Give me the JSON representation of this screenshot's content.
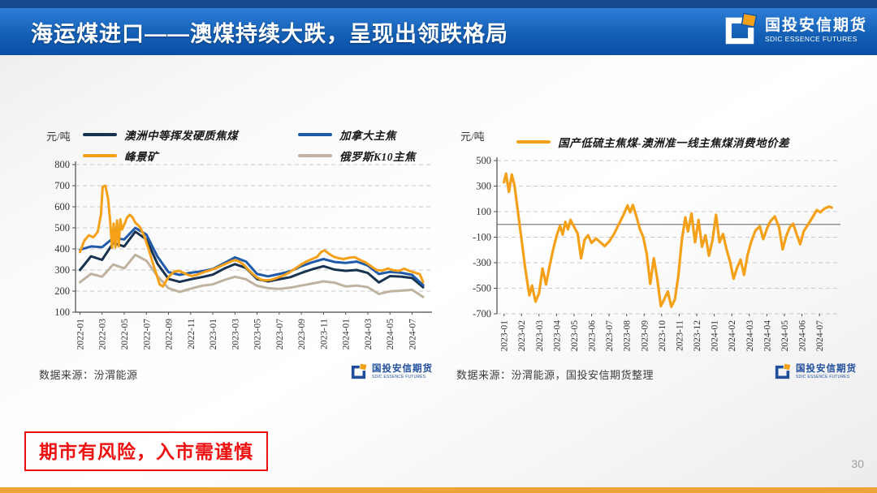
{
  "page": {
    "number": "30"
  },
  "header": {
    "title": "海运煤进口——澳煤持续大跌，呈现出领跌格局"
  },
  "brand": {
    "name_cn": "国投安信期货",
    "name_en": "SDIC ESSENCE FUTURES"
  },
  "risk_notice": "期市有风险，入市需谨慎",
  "colors": {
    "header_strip": "#154a8c",
    "header_top": "#2f7ed8",
    "header_mid": "#1360b5",
    "header_bottom": "#0b4ea6",
    "brand_blue": "#1f4e9c",
    "bottom_bar": "#efa238",
    "risk_red": "#ee1111",
    "navy": "#17334f",
    "blue": "#1f5ba8",
    "orange": "#f4a019",
    "tan": "#bfb2a1",
    "grid": "#c9c9c9",
    "axis": "#4d4d4d",
    "zero": "#808080",
    "tick_text": "#333333",
    "source_text": "#3c3c3c",
    "page_number": "#a0a0a0"
  },
  "chart_data": [
    {
      "type": "line",
      "unit_label": "元/吨",
      "source": "数据来源：汾渭能源",
      "ylim": [
        100,
        800
      ],
      "yticks": [
        800,
        700,
        600,
        500,
        400,
        300,
        200,
        100
      ],
      "bottom_axis": true,
      "zero_line": false,
      "x_domain": [
        -0.4,
        31.8
      ],
      "x_tick_step": 2,
      "x_tick_labels": [
        "2022-01",
        "2022-03",
        "2022-05",
        "2022-07",
        "2022-09",
        "2022-11",
        "2023-01",
        "2023-03",
        "2023-05",
        "2023-07",
        "2023-09",
        "2023-11",
        "2024-01",
        "2024-03",
        "2024-05",
        "2024-07"
      ],
      "margins": {
        "l": 43,
        "r": 10,
        "t": 11,
        "b": 87
      },
      "series": [
        {
          "name": "俄罗斯K10主焦",
          "color_key": "tan",
          "legend_index": 3,
          "width": 3,
          "y": [
            242,
            282,
            268,
            326,
            308,
            372,
            344,
            271,
            214,
            196,
            211,
            225,
            232,
            252,
            268,
            256,
            225,
            214,
            210,
            216,
            226,
            236,
            246,
            240,
            222,
            226,
            219,
            186,
            199,
            202,
            206,
            172
          ]
        },
        {
          "name": "澳洲中等挥发硬质焦煤",
          "color_key": "navy",
          "legend_index": 0,
          "width": 3,
          "y": [
            300,
            365,
            348,
            428,
            412,
            482,
            445,
            330,
            258,
            244,
            256,
            266,
            278,
            306,
            328,
            310,
            257,
            246,
            256,
            266,
            286,
            304,
            318,
            302,
            296,
            300,
            286,
            241,
            271,
            269,
            262,
            218
          ]
        },
        {
          "name": "加拿大主焦",
          "color_key": "blue",
          "legend_index": 1,
          "width": 3,
          "y": [
            396,
            412,
            408,
            452,
            445,
            500,
            468,
            364,
            290,
            277,
            287,
            294,
            305,
            332,
            360,
            340,
            281,
            270,
            281,
            294,
            318,
            337,
            352,
            338,
            334,
            340,
            321,
            281,
            291,
            287,
            277,
            228
          ]
        },
        {
          "name": "峰景矿",
          "color_key": "orange",
          "legend_index": 2,
          "width": 3,
          "points": [
            [
              0,
              385
            ],
            [
              0.4,
              440
            ],
            [
              0.8,
              465
            ],
            [
              1.2,
              455
            ],
            [
              1.6,
              480
            ],
            [
              1.9,
              565
            ],
            [
              2.05,
              695
            ],
            [
              2.3,
              700
            ],
            [
              2.55,
              635
            ],
            [
              2.75,
              520
            ],
            [
              2.9,
              405
            ],
            [
              3.05,
              520
            ],
            [
              3.2,
              408
            ],
            [
              3.35,
              535
            ],
            [
              3.5,
              412
            ],
            [
              3.65,
              540
            ],
            [
              3.8,
              492
            ],
            [
              4.0,
              515
            ],
            [
              4.25,
              548
            ],
            [
              4.5,
              562
            ],
            [
              4.75,
              550
            ],
            [
              5.0,
              525
            ],
            [
              5.4,
              505
            ],
            [
              5.8,
              462
            ],
            [
              6.2,
              400
            ],
            [
              6.6,
              330
            ],
            [
              6.9,
              282
            ],
            [
              7.2,
              232
            ],
            [
              7.5,
              222
            ],
            [
              7.8,
              250
            ],
            [
              8.1,
              272
            ],
            [
              8.5,
              292
            ],
            [
              8.9,
              296
            ],
            [
              9.3,
              288
            ],
            [
              9.7,
              278
            ],
            [
              10.1,
              272
            ],
            [
              10.5,
              276
            ],
            [
              10.9,
              284
            ],
            [
              11.3,
              292
            ],
            [
              11.7,
              298
            ],
            [
              12.1,
              305
            ],
            [
              12.6,
              316
            ],
            [
              13.1,
              328
            ],
            [
              13.6,
              340
            ],
            [
              14.0,
              347
            ],
            [
              14.4,
              340
            ],
            [
              14.8,
              325
            ],
            [
              15.2,
              302
            ],
            [
              15.6,
              282
            ],
            [
              16.0,
              264
            ],
            [
              16.4,
              254
            ],
            [
              16.8,
              251
            ],
            [
              17.2,
              253
            ],
            [
              17.6,
              259
            ],
            [
              18.0,
              267
            ],
            [
              18.5,
              277
            ],
            [
              19.0,
              291
            ],
            [
              19.5,
              309
            ],
            [
              20.0,
              327
            ],
            [
              20.5,
              341
            ],
            [
              21.0,
              353
            ],
            [
              21.4,
              361
            ],
            [
              21.8,
              386
            ],
            [
              22.1,
              393
            ],
            [
              22.5,
              377
            ],
            [
              22.9,
              364
            ],
            [
              23.3,
              357
            ],
            [
              23.8,
              352
            ],
            [
              24.3,
              358
            ],
            [
              24.8,
              361
            ],
            [
              25.3,
              348
            ],
            [
              25.8,
              336
            ],
            [
              26.3,
              318
            ],
            [
              26.8,
              300
            ],
            [
              27.3,
              297
            ],
            [
              27.8,
              307
            ],
            [
              28.3,
              299
            ],
            [
              28.8,
              296
            ],
            [
              29.3,
              306
            ],
            [
              29.8,
              295
            ],
            [
              30.3,
              287
            ],
            [
              30.7,
              280
            ],
            [
              31.0,
              242
            ]
          ]
        }
      ]
    },
    {
      "type": "line",
      "unit_label": "元/吨",
      "source": "数据来源：汾渭能源，国投安信期货整理",
      "ylim": [
        -700,
        500
      ],
      "yticks": [
        500,
        300,
        100,
        -100,
        -300,
        -500,
        -700
      ],
      "bottom_axis": false,
      "zero_line": true,
      "x_domain": [
        -0.4,
        19.2
      ],
      "x_tick_step": 1,
      "x_tick_labels": [
        "2023-01",
        "2023-02",
        "2023-03",
        "2023-04",
        "2023-05",
        "2023-06",
        "2023-07",
        "2023-08",
        "2023-09",
        "2023-10",
        "2023-11",
        "2023-12",
        "2024-01",
        "2024-02",
        "2024-03",
        "2024-04",
        "2024-05",
        "2024-06",
        "2024-07"
      ],
      "margins": {
        "l": 50,
        "r": 10,
        "t": 6,
        "b": 85
      },
      "series": [
        {
          "name": "国产低硫主焦煤-澳洲准一线主焦煤消费地价差",
          "color_key": "orange",
          "legend_index": 0,
          "width": 3.2,
          "points": [
            [
              0,
              330
            ],
            [
              0.12,
              398
            ],
            [
              0.28,
              255
            ],
            [
              0.45,
              390
            ],
            [
              0.6,
              305
            ],
            [
              0.8,
              95
            ],
            [
              1.0,
              -115
            ],
            [
              1.2,
              -330
            ],
            [
              1.45,
              -555
            ],
            [
              1.6,
              -480
            ],
            [
              1.8,
              -605
            ],
            [
              2.0,
              -540
            ],
            [
              2.2,
              -345
            ],
            [
              2.4,
              -470
            ],
            [
              2.6,
              -330
            ],
            [
              2.8,
              -200
            ],
            [
              3.0,
              -90
            ],
            [
              3.2,
              -10
            ],
            [
              3.35,
              -80
            ],
            [
              3.5,
              20
            ],
            [
              3.65,
              -40
            ],
            [
              3.8,
              35
            ],
            [
              4.0,
              -20
            ],
            [
              4.2,
              -70
            ],
            [
              4.4,
              -265
            ],
            [
              4.6,
              -120
            ],
            [
              4.8,
              -85
            ],
            [
              5.0,
              -145
            ],
            [
              5.25,
              -110
            ],
            [
              5.5,
              -140
            ],
            [
              5.75,
              -170
            ],
            [
              6.0,
              -135
            ],
            [
              6.3,
              -70
            ],
            [
              6.6,
              15
            ],
            [
              6.85,
              85
            ],
            [
              7.05,
              148
            ],
            [
              7.2,
              95
            ],
            [
              7.35,
              152
            ],
            [
              7.55,
              65
            ],
            [
              7.75,
              -35
            ],
            [
              7.95,
              -100
            ],
            [
              8.15,
              -235
            ],
            [
              8.35,
              -465
            ],
            [
              8.55,
              -265
            ],
            [
              8.75,
              -430
            ],
            [
              8.95,
              -640
            ],
            [
              9.15,
              -585
            ],
            [
              9.35,
              -525
            ],
            [
              9.55,
              -645
            ],
            [
              9.75,
              -588
            ],
            [
              9.95,
              -400
            ],
            [
              10.15,
              -120
            ],
            [
              10.35,
              55
            ],
            [
              10.5,
              -55
            ],
            [
              10.7,
              85
            ],
            [
              10.9,
              -140
            ],
            [
              11.1,
              35
            ],
            [
              11.3,
              -175
            ],
            [
              11.5,
              -85
            ],
            [
              11.7,
              -245
            ],
            [
              11.9,
              -120
            ],
            [
              12.1,
              75
            ],
            [
              12.3,
              -140
            ],
            [
              12.5,
              -75
            ],
            [
              12.7,
              -195
            ],
            [
              12.9,
              -290
            ],
            [
              13.1,
              -425
            ],
            [
              13.3,
              -340
            ],
            [
              13.5,
              -275
            ],
            [
              13.7,
              -395
            ],
            [
              13.9,
              -240
            ],
            [
              14.1,
              -140
            ],
            [
              14.35,
              -48
            ],
            [
              14.6,
              -15
            ],
            [
              14.8,
              -115
            ],
            [
              15.0,
              -35
            ],
            [
              15.2,
              25
            ],
            [
              15.45,
              62
            ],
            [
              15.7,
              -25
            ],
            [
              15.9,
              -195
            ],
            [
              16.1,
              -95
            ],
            [
              16.3,
              -25
            ],
            [
              16.5,
              5
            ],
            [
              16.7,
              -75
            ],
            [
              16.9,
              -155
            ],
            [
              17.1,
              -55
            ],
            [
              17.35,
              0
            ],
            [
              17.6,
              55
            ],
            [
              17.85,
              112
            ],
            [
              18.05,
              95
            ],
            [
              18.3,
              125
            ],
            [
              18.55,
              140
            ],
            [
              18.7,
              132
            ]
          ]
        }
      ]
    }
  ]
}
